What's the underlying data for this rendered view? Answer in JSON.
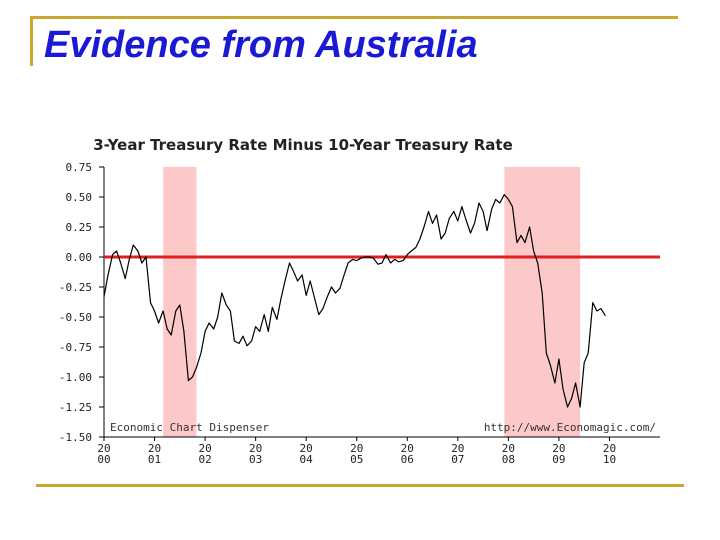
{
  "slide": {
    "title": "Evidence from Australia"
  },
  "chart_data": {
    "type": "line",
    "title": "3-Year Treasury Rate Minus 10-Year Treasury Rate",
    "xlabel": "",
    "ylabel": "",
    "ylim": [
      -1.5,
      0.75
    ],
    "xlim": [
      2000.0,
      2011.0
    ],
    "y_ticks": [
      {
        "value": 0.75,
        "label": "0.75"
      },
      {
        "value": 0.5,
        "label": "0.50"
      },
      {
        "value": 0.25,
        "label": "0.25"
      },
      {
        "value": 0.0,
        "label": "0.00"
      },
      {
        "value": -0.25,
        "label": "-0.25"
      },
      {
        "value": -0.5,
        "label": "-0.50"
      },
      {
        "value": -0.75,
        "label": "-0.75"
      },
      {
        "value": -1.0,
        "label": "-1.00"
      },
      {
        "value": -1.25,
        "label": "-1.25"
      },
      {
        "value": -1.5,
        "label": "-1.50"
      }
    ],
    "x_ticks": [
      {
        "value": 2000,
        "top": "20",
        "bottom": "00"
      },
      {
        "value": 2001,
        "top": "20",
        "bottom": "01"
      },
      {
        "value": 2002,
        "top": "20",
        "bottom": "02"
      },
      {
        "value": 2003,
        "top": "20",
        "bottom": "03"
      },
      {
        "value": 2004,
        "top": "20",
        "bottom": "04"
      },
      {
        "value": 2005,
        "top": "20",
        "bottom": "05"
      },
      {
        "value": 2006,
        "top": "20",
        "bottom": "06"
      },
      {
        "value": 2007,
        "top": "20",
        "bottom": "07"
      },
      {
        "value": 2008,
        "top": "20",
        "bottom": "08"
      },
      {
        "value": 2009,
        "top": "20",
        "bottom": "09"
      },
      {
        "value": 2010,
        "top": "20",
        "bottom": "10"
      }
    ],
    "shaded_periods": [
      {
        "start": 2001.17,
        "end": 2001.83
      },
      {
        "start": 2007.92,
        "end": 2009.42
      }
    ],
    "reference_line": {
      "y": 0.0,
      "color": "#e02020"
    },
    "colors": {
      "line": "#000000",
      "shade": "#fcc8c8",
      "reference": "#e02020"
    },
    "watermarks": {
      "left": "Economic Chart Dispenser",
      "right": "http://www.Economagic.com/"
    },
    "series": [
      {
        "name": "3-Year minus 10-Year Treasury Rate",
        "points": [
          [
            2000.0,
            -0.33
          ],
          [
            2000.08,
            -0.15
          ],
          [
            2000.17,
            0.02
          ],
          [
            2000.25,
            0.05
          ],
          [
            2000.33,
            -0.05
          ],
          [
            2000.42,
            -0.18
          ],
          [
            2000.5,
            -0.02
          ],
          [
            2000.58,
            0.1
          ],
          [
            2000.67,
            0.05
          ],
          [
            2000.75,
            -0.05
          ],
          [
            2000.83,
            0.0
          ],
          [
            2000.92,
            -0.38
          ],
          [
            2001.0,
            -0.45
          ],
          [
            2001.08,
            -0.55
          ],
          [
            2001.17,
            -0.45
          ],
          [
            2001.25,
            -0.6
          ],
          [
            2001.33,
            -0.65
          ],
          [
            2001.42,
            -0.45
          ],
          [
            2001.5,
            -0.4
          ],
          [
            2001.58,
            -0.62
          ],
          [
            2001.67,
            -1.03
          ],
          [
            2001.75,
            -1.0
          ],
          [
            2001.83,
            -0.92
          ],
          [
            2001.92,
            -0.8
          ],
          [
            2002.0,
            -0.62
          ],
          [
            2002.08,
            -0.55
          ],
          [
            2002.17,
            -0.6
          ],
          [
            2002.25,
            -0.5
          ],
          [
            2002.33,
            -0.3
          ],
          [
            2002.42,
            -0.4
          ],
          [
            2002.5,
            -0.45
          ],
          [
            2002.58,
            -0.7
          ],
          [
            2002.67,
            -0.72
          ],
          [
            2002.75,
            -0.66
          ],
          [
            2002.83,
            -0.74
          ],
          [
            2002.92,
            -0.7
          ],
          [
            2003.0,
            -0.58
          ],
          [
            2003.08,
            -0.62
          ],
          [
            2003.17,
            -0.48
          ],
          [
            2003.25,
            -0.62
          ],
          [
            2003.33,
            -0.42
          ],
          [
            2003.42,
            -0.52
          ],
          [
            2003.5,
            -0.35
          ],
          [
            2003.58,
            -0.2
          ],
          [
            2003.67,
            -0.05
          ],
          [
            2003.75,
            -0.12
          ],
          [
            2003.83,
            -0.2
          ],
          [
            2003.92,
            -0.15
          ],
          [
            2004.0,
            -0.32
          ],
          [
            2004.08,
            -0.2
          ],
          [
            2004.17,
            -0.35
          ],
          [
            2004.25,
            -0.48
          ],
          [
            2004.33,
            -0.43
          ],
          [
            2004.42,
            -0.33
          ],
          [
            2004.5,
            -0.25
          ],
          [
            2004.58,
            -0.3
          ],
          [
            2004.67,
            -0.26
          ],
          [
            2004.75,
            -0.15
          ],
          [
            2004.83,
            -0.05
          ],
          [
            2004.92,
            -0.02
          ],
          [
            2005.0,
            -0.03
          ],
          [
            2005.08,
            -0.01
          ],
          [
            2005.17,
            0.0
          ],
          [
            2005.25,
            0.0
          ],
          [
            2005.33,
            -0.01
          ],
          [
            2005.42,
            -0.06
          ],
          [
            2005.5,
            -0.05
          ],
          [
            2005.58,
            0.02
          ],
          [
            2005.67,
            -0.05
          ],
          [
            2005.75,
            -0.02
          ],
          [
            2005.83,
            -0.04
          ],
          [
            2005.92,
            -0.03
          ],
          [
            2006.0,
            0.02
          ],
          [
            2006.08,
            0.05
          ],
          [
            2006.17,
            0.08
          ],
          [
            2006.25,
            0.15
          ],
          [
            2006.33,
            0.25
          ],
          [
            2006.42,
            0.38
          ],
          [
            2006.5,
            0.28
          ],
          [
            2006.58,
            0.35
          ],
          [
            2006.67,
            0.15
          ],
          [
            2006.75,
            0.2
          ],
          [
            2006.83,
            0.32
          ],
          [
            2006.92,
            0.38
          ],
          [
            2007.0,
            0.3
          ],
          [
            2007.08,
            0.42
          ],
          [
            2007.17,
            0.3
          ],
          [
            2007.25,
            0.2
          ],
          [
            2007.33,
            0.28
          ],
          [
            2007.42,
            0.45
          ],
          [
            2007.5,
            0.38
          ],
          [
            2007.58,
            0.22
          ],
          [
            2007.67,
            0.4
          ],
          [
            2007.75,
            0.48
          ],
          [
            2007.83,
            0.45
          ],
          [
            2007.92,
            0.52
          ],
          [
            2008.0,
            0.48
          ],
          [
            2008.08,
            0.42
          ],
          [
            2008.17,
            0.12
          ],
          [
            2008.25,
            0.18
          ],
          [
            2008.33,
            0.12
          ],
          [
            2008.42,
            0.25
          ],
          [
            2008.5,
            0.05
          ],
          [
            2008.58,
            -0.05
          ],
          [
            2008.67,
            -0.3
          ],
          [
            2008.75,
            -0.8
          ],
          [
            2008.83,
            -0.9
          ],
          [
            2008.92,
            -1.05
          ],
          [
            2009.0,
            -0.85
          ],
          [
            2009.08,
            -1.1
          ],
          [
            2009.17,
            -1.25
          ],
          [
            2009.25,
            -1.18
          ],
          [
            2009.33,
            -1.05
          ],
          [
            2009.42,
            -1.25
          ],
          [
            2009.5,
            -0.88
          ],
          [
            2009.58,
            -0.8
          ],
          [
            2009.67,
            -0.38
          ],
          [
            2009.75,
            -0.45
          ],
          [
            2009.83,
            -0.43
          ],
          [
            2009.92,
            -0.49
          ]
        ]
      }
    ]
  }
}
